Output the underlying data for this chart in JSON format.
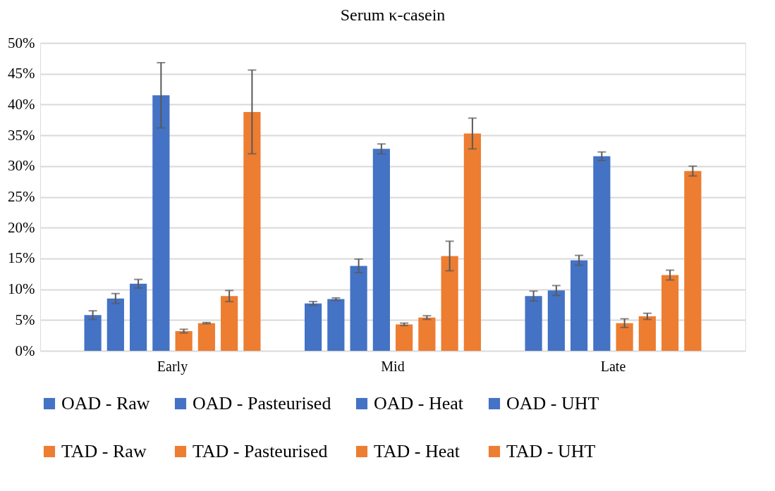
{
  "chart_data": {
    "type": "bar",
    "title": "Serum κ-casein",
    "categories": [
      "Early",
      "Mid",
      "Late"
    ],
    "series": [
      {
        "name": "OAD - Raw",
        "color": "#4472c4",
        "values": [
          5.8,
          7.7,
          8.9
        ],
        "errors": [
          0.7,
          0.3,
          0.8
        ]
      },
      {
        "name": "OAD - Pasteurised",
        "color": "#4472c4",
        "values": [
          8.5,
          8.4,
          9.8
        ],
        "errors": [
          0.8,
          0.2,
          0.8
        ]
      },
      {
        "name": "OAD - Heat",
        "color": "#4472c4",
        "values": [
          10.9,
          13.8,
          14.7
        ],
        "errors": [
          0.7,
          1.1,
          0.8
        ]
      },
      {
        "name": "OAD - UHT",
        "color": "#4472c4",
        "values": [
          41.5,
          32.8,
          31.6
        ],
        "errors": [
          5.3,
          0.8,
          0.7
        ]
      },
      {
        "name": "TAD - Raw",
        "color": "#ed7d31",
        "values": [
          3.2,
          4.3,
          4.5
        ],
        "errors": [
          0.3,
          0.2,
          0.7
        ]
      },
      {
        "name": "TAD - Pasteurised",
        "color": "#ed7d31",
        "values": [
          4.5,
          5.4,
          5.6
        ],
        "errors": [
          0.1,
          0.3,
          0.5
        ]
      },
      {
        "name": "TAD - Heat",
        "color": "#ed7d31",
        "values": [
          8.9,
          15.4,
          12.3
        ],
        "errors": [
          0.9,
          2.4,
          0.8
        ]
      },
      {
        "name": "TAD - UHT",
        "color": "#ed7d31",
        "values": [
          38.8,
          35.3,
          29.2
        ],
        "errors": [
          6.8,
          2.5,
          0.8
        ]
      }
    ],
    "ylim": [
      0,
      50
    ],
    "yticks": [
      {
        "value": 0,
        "label": "0%"
      },
      {
        "value": 5,
        "label": "5%"
      },
      {
        "value": 10,
        "label": "10%"
      },
      {
        "value": 15,
        "label": "15%"
      },
      {
        "value": 20,
        "label": "20%"
      },
      {
        "value": 25,
        "label": "25%"
      },
      {
        "value": 30,
        "label": "30%"
      },
      {
        "value": 35,
        "label": "35%"
      },
      {
        "value": 40,
        "label": "40%"
      },
      {
        "value": 45,
        "label": "45%"
      },
      {
        "value": 50,
        "label": "50%"
      }
    ],
    "grid": "y",
    "legend": "bottom"
  }
}
